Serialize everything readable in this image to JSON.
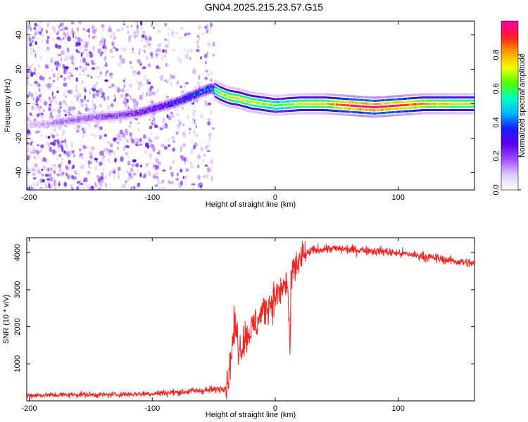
{
  "title": "GN04.2025.215.23.57.G15",
  "chart_data": [
    {
      "type": "heatmap",
      "xlabel": "Height of straight line (km)",
      "ylabel": "Frequency (Hz)",
      "xlim": [
        -202,
        162
      ],
      "ylim": [
        -50,
        48
      ],
      "xticks": [
        -200,
        -100,
        0,
        100
      ],
      "yticks": [
        -40,
        -20,
        0,
        20,
        40
      ],
      "colorbar": {
        "label": "Normalized spectral amplitude",
        "range": [
          0,
          1
        ],
        "ticks": [
          "0.0",
          "0.2",
          "0.4",
          "0.6",
          "0.8"
        ],
        "tick_values": [
          0.0,
          0.2,
          0.4,
          0.6,
          0.8
        ],
        "colormap": [
          "#ffffff",
          "#e0c8ff",
          "#9b4dff",
          "#5b00e6",
          "#1a1aff",
          "#00b4ff",
          "#00ffc8",
          "#50ff00",
          "#f0ff00",
          "#ffa000",
          "#ff2020",
          "#ff00a0"
        ]
      },
      "ridge": {
        "x": [
          -202,
          -190,
          -170,
          -150,
          -130,
          -110,
          -95,
          -80,
          -70,
          -60,
          -52,
          -45,
          -38,
          -30,
          -20,
          -10,
          0,
          20,
          40,
          60,
          80,
          100,
          120,
          140,
          162
        ],
        "frequency": [
          -12,
          -12,
          -10,
          -8,
          -7,
          -5,
          -2,
          1,
          4,
          7,
          9,
          6,
          4,
          3,
          1,
          0,
          -1,
          0,
          0,
          -1,
          -2,
          -1,
          0,
          0,
          0
        ],
        "amplitude": [
          0.1,
          0.12,
          0.18,
          0.2,
          0.22,
          0.28,
          0.32,
          0.36,
          0.42,
          0.45,
          0.48,
          0.7,
          0.72,
          0.72,
          0.72,
          0.7,
          0.6,
          0.7,
          0.75,
          0.95,
          1.0,
          0.95,
          0.8,
          0.75,
          0.7
        ]
      },
      "noise_region": [
        -202,
        -50
      ]
    },
    {
      "type": "line",
      "xlabel": "Height of straight line (km)",
      "ylabel": "SNR (10 * v/v)",
      "xlim": [
        -202,
        162
      ],
      "ylim": [
        0,
        4400
      ],
      "xticks": [
        -200,
        -100,
        0,
        100
      ],
      "yticks": [
        1000,
        2000,
        3000,
        4000
      ],
      "color": "#ff2020",
      "series": [
        {
          "x": [
            -202,
            -180,
            -160,
            -140,
            -120,
            -100,
            -80,
            -70,
            -60,
            -50,
            -45,
            -40,
            -38,
            -35,
            -33,
            -31,
            -30,
            -28,
            -25,
            -20,
            -15,
            -10,
            -5,
            0,
            5,
            8,
            10,
            12,
            13,
            15,
            18,
            20,
            25,
            30,
            40,
            50,
            60,
            70,
            80,
            90,
            100,
            110,
            120,
            130,
            140,
            150,
            162
          ],
          "y": [
            150,
            160,
            170,
            165,
            180,
            200,
            230,
            260,
            280,
            300,
            330,
            380,
            700,
            1500,
            2000,
            1800,
            1500,
            1400,
            1700,
            1900,
            2100,
            2400,
            2600,
            2800,
            3000,
            3100,
            3200,
            1300,
            3300,
            3500,
            3700,
            3800,
            3950,
            4050,
            4100,
            4100,
            4080,
            4070,
            4050,
            4020,
            3980,
            3950,
            3900,
            3850,
            3800,
            3750,
            3700
          ]
        }
      ]
    }
  ]
}
